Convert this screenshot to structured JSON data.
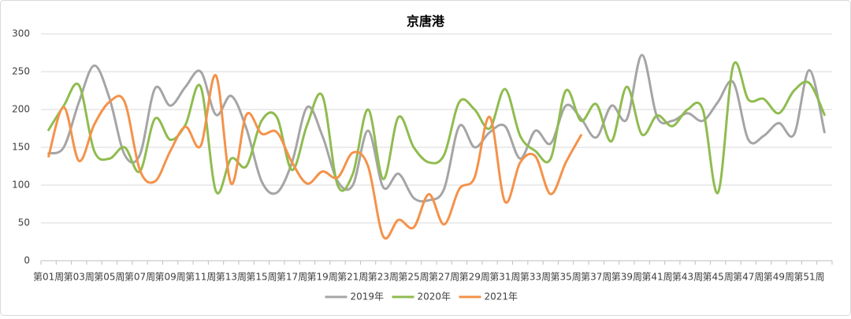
{
  "chart_data": {
    "type": "line",
    "title": "京唐港",
    "categories": [
      "第01周",
      null,
      "第03周",
      null,
      "第05周",
      null,
      "第07周",
      null,
      "第09周",
      null,
      "第11周",
      null,
      "第13周",
      null,
      "第15周",
      null,
      "第17周",
      null,
      "第19周",
      null,
      "第21周",
      null,
      "第23周",
      null,
      "第25周",
      null,
      "第27周",
      null,
      "第29周",
      null,
      "第31周",
      null,
      "第33周",
      null,
      "第35周",
      null,
      "第37周",
      null,
      "第39周",
      null,
      "第41周",
      null,
      "第43周",
      null,
      "第45周",
      null,
      "第47周",
      null,
      "第49周",
      null,
      "第51周",
      null
    ],
    "series": [
      {
        "name": "2019年",
        "color": "#a5a5a5",
        "values": [
          142,
          150,
          210,
          258,
          215,
          140,
          140,
          228,
          205,
          230,
          250,
          193,
          218,
          175,
          105,
          90,
          130,
          203,
          165,
          105,
          100,
          172,
          97,
          115,
          83,
          80,
          95,
          178,
          150,
          170,
          178,
          135,
          172,
          155,
          205,
          188,
          163,
          205,
          187,
          272,
          190,
          185,
          195,
          185,
          210,
          236,
          160,
          165,
          182,
          167,
          252,
          170
        ]
      },
      {
        "name": "2020年",
        "color": "#8fbc4f",
        "values": [
          173,
          205,
          232,
          145,
          135,
          150,
          118,
          188,
          160,
          180,
          230,
          92,
          135,
          125,
          185,
          190,
          120,
          180,
          218,
          100,
          115,
          200,
          108,
          190,
          150,
          130,
          140,
          210,
          200,
          175,
          227,
          165,
          145,
          135,
          225,
          185,
          207,
          158,
          230,
          167,
          192,
          178,
          200,
          200,
          90,
          258,
          213,
          214,
          195,
          225,
          235,
          193
        ]
      },
      {
        "name": "2021年",
        "color": "#f4924a",
        "values": [
          138,
          203,
          132,
          180,
          210,
          210,
          120,
          105,
          145,
          177,
          152,
          245,
          102,
          193,
          168,
          170,
          130,
          102,
          118,
          110,
          143,
          125,
          32,
          54,
          44,
          88,
          48,
          95,
          110,
          190,
          78,
          130,
          138,
          88,
          130,
          166,
          null,
          null,
          null,
          null,
          null,
          null,
          null,
          null,
          null,
          null,
          null,
          null,
          null,
          null,
          null,
          null
        ]
      }
    ],
    "ylim": [
      0,
      300
    ],
    "yticks": [
      0,
      50,
      100,
      150,
      200,
      250,
      300
    ],
    "grid": true,
    "legend": "bottom"
  }
}
